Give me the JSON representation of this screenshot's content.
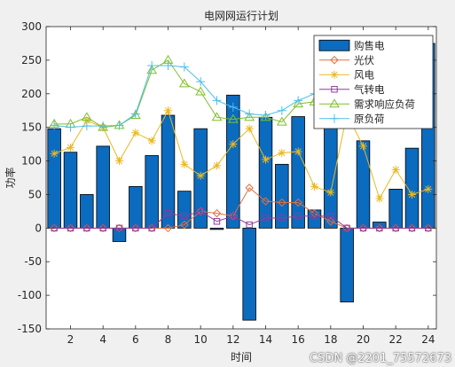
{
  "watermark": "CSDN @2201_75572673",
  "chart_data": {
    "type": "bar",
    "title": "电网网运行计划",
    "xlabel": "时间",
    "ylabel": "功率",
    "xlim": [
      0.5,
      24.5
    ],
    "ylim": [
      -150,
      300
    ],
    "xticks": [
      2,
      4,
      6,
      8,
      10,
      12,
      14,
      16,
      18,
      20,
      22,
      24
    ],
    "yticks": [
      -150,
      -100,
      -50,
      0,
      50,
      100,
      150,
      200,
      250,
      300
    ],
    "legend_position": "top-right",
    "x": [
      1,
      2,
      3,
      4,
      5,
      6,
      7,
      8,
      9,
      10,
      11,
      12,
      13,
      14,
      15,
      16,
      17,
      18,
      19,
      20,
      21,
      22,
      23,
      24
    ],
    "series": [
      {
        "name": "购售电",
        "kind": "bar",
        "color": "#0b6bbf",
        "values": [
          148,
          113,
          50,
          122,
          -20,
          62,
          108,
          168,
          55,
          148,
          -2,
          198,
          -137,
          165,
          95,
          166,
          27,
          160,
          -110,
          130,
          9,
          58,
          119,
          275
        ]
      },
      {
        "name": "光伏",
        "kind": "line",
        "marker": "diamond",
        "color": "#e07040",
        "values": [
          0,
          0,
          0,
          0,
          0,
          0,
          0,
          0,
          5,
          25,
          22,
          18,
          60,
          40,
          38,
          38,
          22,
          10,
          0,
          0,
          0,
          0,
          0,
          0
        ]
      },
      {
        "name": "风电",
        "kind": "line",
        "marker": "star",
        "color": "#e8b820",
        "values": [
          111,
          120,
          160,
          150,
          100,
          142,
          130,
          175,
          95,
          78,
          93,
          125,
          148,
          102,
          112,
          114,
          62,
          53,
          170,
          122,
          44,
          87,
          50,
          58
        ]
      },
      {
        "name": "气转电",
        "kind": "line",
        "marker": "square",
        "color": "#8e3b9e",
        "values": [
          0,
          0,
          0,
          0,
          0,
          0,
          0,
          22,
          18,
          25,
          10,
          18,
          5,
          15,
          15,
          18,
          18,
          18,
          0,
          0,
          0,
          0,
          0,
          0
        ]
      },
      {
        "name": "需求响应负荷",
        "kind": "line",
        "marker": "triangle",
        "color": "#7fbf28",
        "values": [
          155,
          155,
          165,
          150,
          153,
          168,
          235,
          250,
          215,
          203,
          165,
          162,
          165,
          165,
          158,
          185,
          188,
          180,
          175,
          165,
          165,
          165,
          170,
          175
        ]
      },
      {
        "name": "原负荷",
        "kind": "line",
        "marker": "plus",
        "color": "#4dbeee",
        "values": [
          153,
          150,
          152,
          152,
          153,
          170,
          242,
          242,
          240,
          218,
          190,
          180,
          170,
          168,
          175,
          190,
          200,
          210,
          200,
          185,
          180,
          178,
          178,
          180
        ]
      }
    ]
  }
}
